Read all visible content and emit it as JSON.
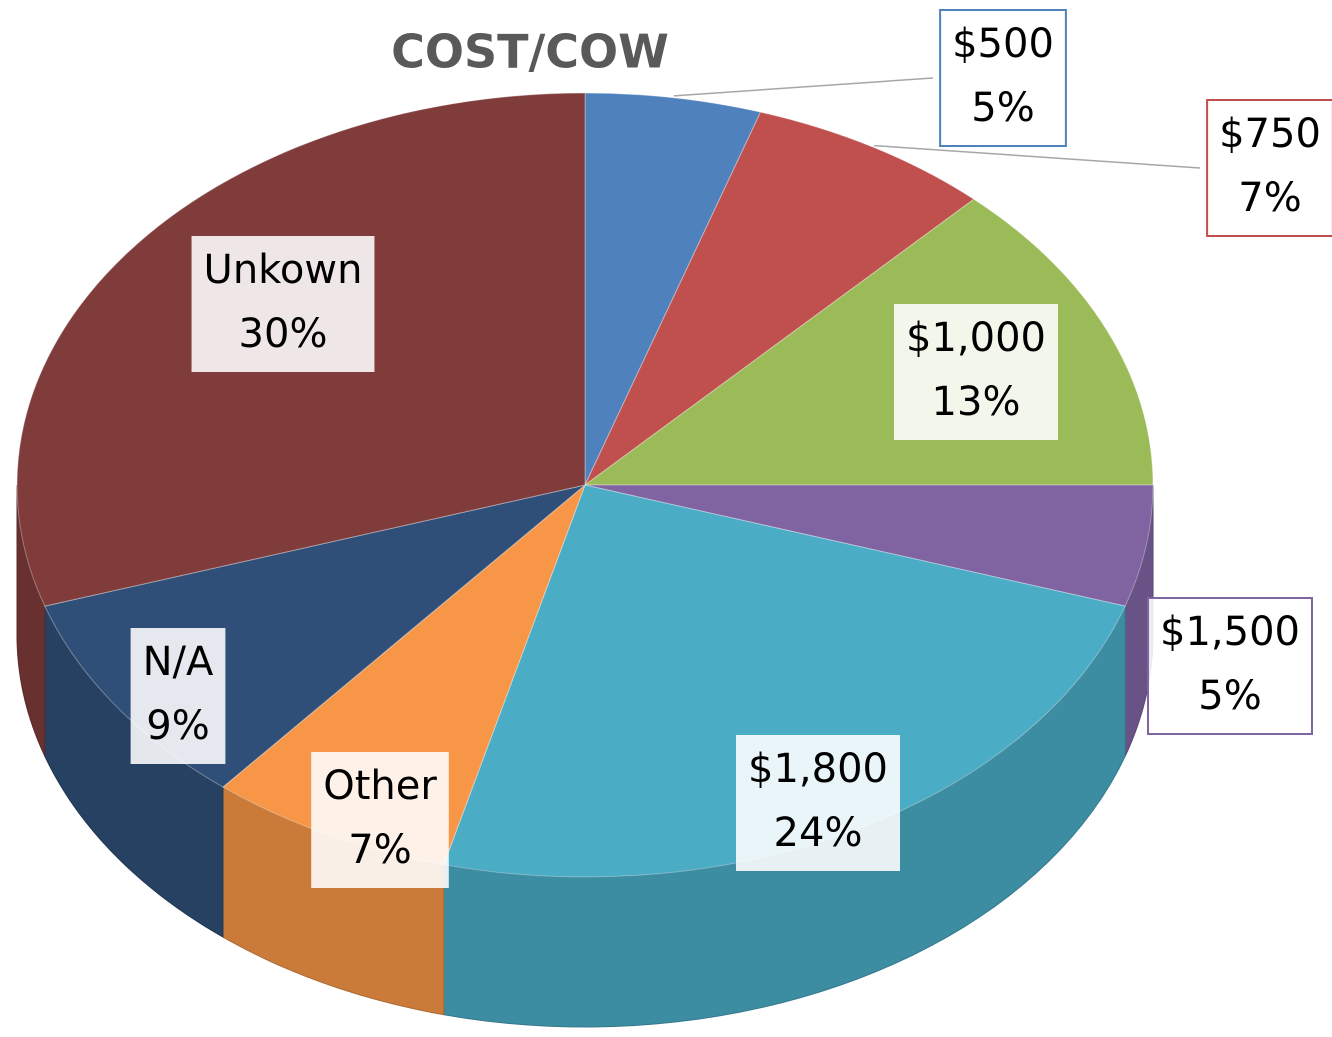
{
  "chart_data": {
    "type": "pie",
    "title": "COST/COW",
    "categories": [
      "$500",
      "$750",
      "$1,000",
      "$1,500",
      "$1,800",
      "Other",
      "N/A",
      "Unkown"
    ],
    "values": [
      5,
      7,
      13,
      5,
      24,
      7,
      9,
      30
    ],
    "value_labels": [
      "5%",
      "7%",
      "13%",
      "5%",
      "24%",
      "7%",
      "9%",
      "30%"
    ],
    "colors": [
      "#4f81bd",
      "#c0504d",
      "#9bbb59",
      "#8064a2",
      "#4bacc6",
      "#f79646",
      "#2f4f78",
      "#7f3c3b"
    ]
  }
}
